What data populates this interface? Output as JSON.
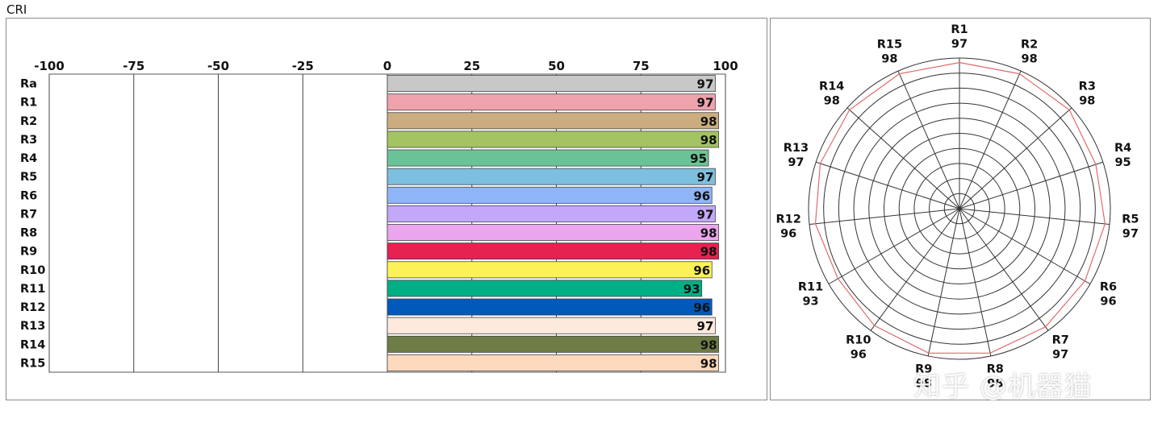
{
  "title": "CRI",
  "watermark": "知乎 @机器猫",
  "chart_data": [
    {
      "type": "bar",
      "orientation": "horizontal",
      "categories": [
        "Ra",
        "R1",
        "R2",
        "R3",
        "R4",
        "R5",
        "R6",
        "R7",
        "R8",
        "R9",
        "R10",
        "R11",
        "R12",
        "R13",
        "R14",
        "R15"
      ],
      "values": [
        97,
        97,
        98,
        98,
        95,
        97,
        96,
        97,
        98,
        98,
        96,
        93,
        96,
        97,
        98,
        98
      ],
      "colors": [
        "#c8c8c8",
        "#eea2ac",
        "#cbad80",
        "#a4c361",
        "#6ac396",
        "#7dbfde",
        "#8fb5f9",
        "#c3a7f8",
        "#eba6ee",
        "#e52250",
        "#fcf257",
        "#00af85",
        "#0059bb",
        "#fee9dd",
        "#6e7c46",
        "#fdd9be"
      ],
      "xlim": [
        -100,
        100
      ],
      "xticks": [
        "-100",
        "-75",
        "-50",
        "-25",
        "0",
        "25",
        "50",
        "75",
        "100"
      ],
      "grid": true,
      "data_labels": true
    },
    {
      "type": "radar",
      "categories": [
        "R1",
        "R2",
        "R3",
        "R4",
        "R5",
        "R6",
        "R7",
        "R8",
        "R9",
        "R10",
        "R11",
        "R12",
        "R13",
        "R14",
        "R15"
      ],
      "values": [
        97,
        98,
        98,
        95,
        97,
        96,
        97,
        98,
        98,
        96,
        93,
        96,
        97,
        98,
        98
      ],
      "rlim": [
        0,
        100
      ],
      "rings": 10,
      "line_color": "#e26a6a"
    }
  ]
}
